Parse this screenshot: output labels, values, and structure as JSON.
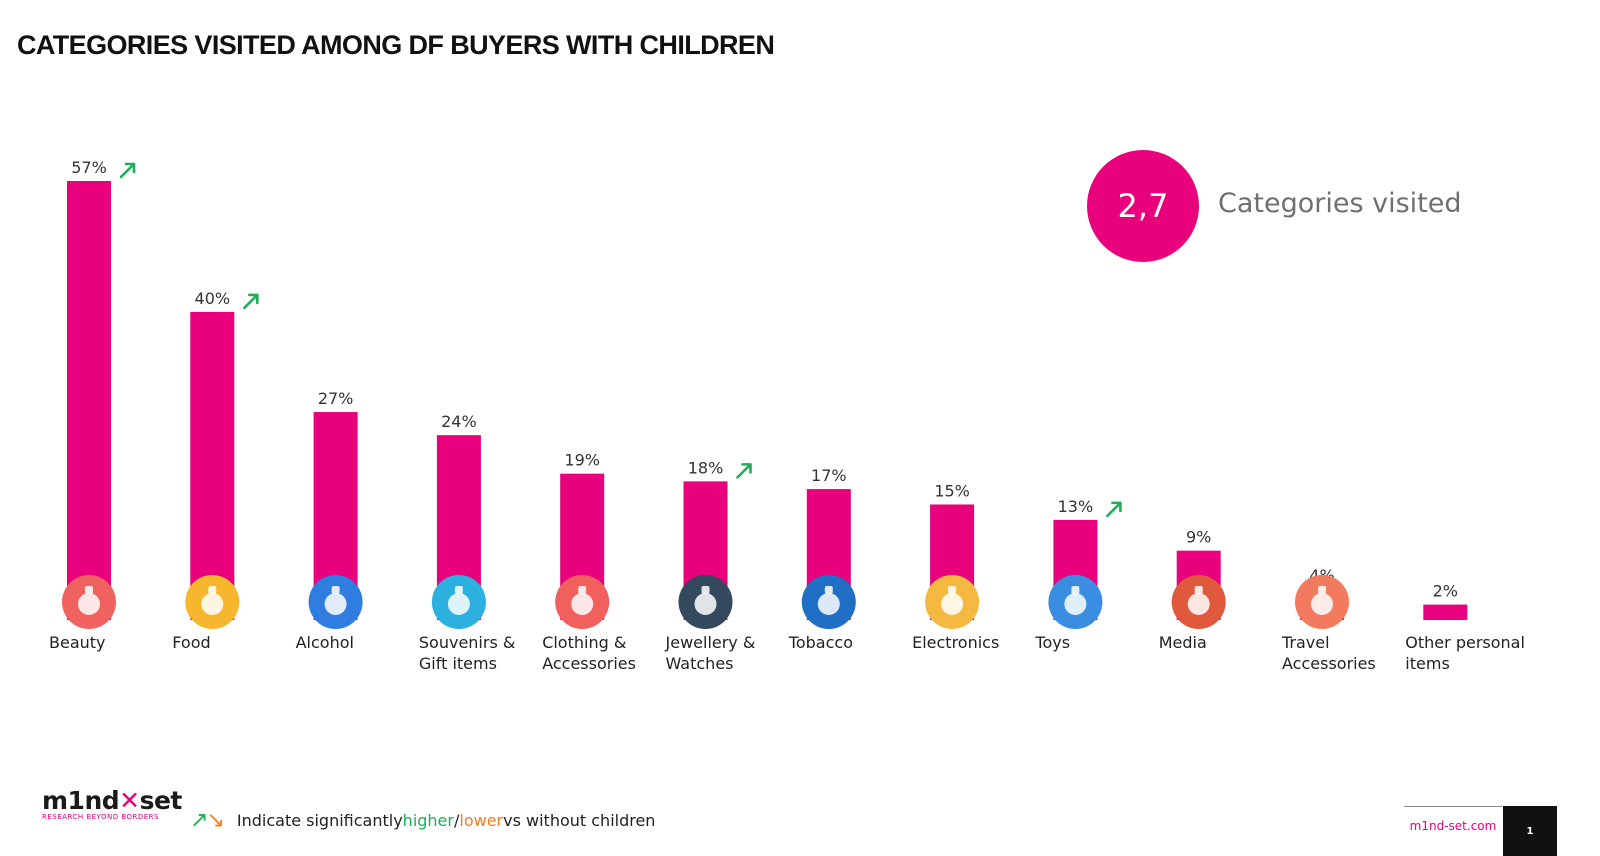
{
  "title": "CATEGORIES VISITED AMONG DF BUYERS WITH CHILDREN",
  "summary": {
    "value": "2,7",
    "label": "Categories visited"
  },
  "colors": {
    "bar": "#e8007d",
    "higher": "#1fae55",
    "lower": "#f07f1e"
  },
  "chart_data": {
    "type": "bar",
    "categories": [
      "Beauty",
      "Food",
      "Alcohol",
      "Souvenirs & Gift items",
      "Clothing & Accessories",
      "Jewellery & Watches",
      "Tobacco",
      "Electronics",
      "Toys",
      "Media",
      "Travel Accessories",
      "Other personal items"
    ],
    "values": [
      57,
      40,
      27,
      24,
      19,
      18,
      17,
      15,
      13,
      9,
      4,
      2
    ],
    "value_labels": [
      "57%",
      "40%",
      "27%",
      "24%",
      "19%",
      "18%",
      "17%",
      "15%",
      "13%",
      "9%",
      "4%",
      "2%"
    ],
    "significance": [
      "higher",
      "higher",
      "",
      "",
      "",
      "higher",
      "",
      "",
      "higher",
      "",
      "",
      ""
    ],
    "icons": [
      "perfume-icon",
      "burger-icon",
      "cocktail-icon",
      "ornament-icon",
      "dress-icon",
      "necklace-icon",
      "cigarette-icon",
      "tablet-icon",
      "teddy-bear-icon",
      "book-icon",
      "sunhat-icon",
      ""
    ],
    "icon_colors": [
      "#f0625f",
      "#f6b72e",
      "#2f7de0",
      "#2bb0df",
      "#f2605e",
      "#34495e",
      "#1f6fc5",
      "#f5b942",
      "#3a8de0",
      "#e0593d",
      "#f27a5e",
      ""
    ],
    "ylim": [
      0,
      60
    ],
    "grid": false,
    "legend": "bottom-left"
  },
  "legend": {
    "arrows": "↗↘",
    "prefix": "Indicate significantly ",
    "higher": "higher",
    "sep": " / ",
    "lower": "lower",
    "suffix": " vs without children"
  },
  "footer": {
    "logo_left": "m1nd",
    "logo_x": "·",
    "logo_right": "set",
    "tagline": "RESEARCH BEYOND BORDERS",
    "site": "m1nd-set.com",
    "page": "1"
  }
}
